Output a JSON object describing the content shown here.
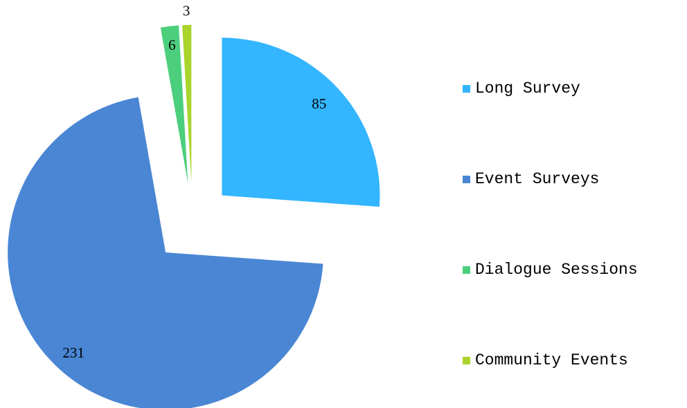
{
  "chart_data": {
    "type": "pie",
    "categories": [
      "Long Survey",
      "Event Surveys",
      "Dialogue Sessions",
      "Community Events"
    ],
    "values": [
      85,
      231,
      6,
      3
    ],
    "colors": [
      "#33b5ff",
      "#4a86d4",
      "#4ccf7c",
      "#a9d42c"
    ],
    "exploded": true,
    "legend": "right"
  }
}
